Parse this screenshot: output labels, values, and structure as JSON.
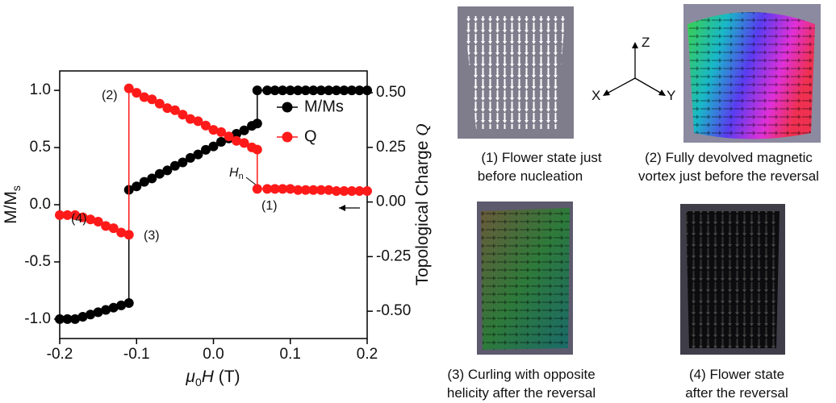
{
  "chart_data": {
    "type": "line",
    "xlabel": [
      "μ",
      "0",
      "H",
      " (T)"
    ],
    "ylabel": [
      "M/M",
      "s"
    ],
    "y2label": [
      "Topological Charge ",
      "Q"
    ],
    "xlim": [
      -0.2,
      0.2
    ],
    "xticks": [
      -0.2,
      -0.1,
      {
        "value": 0,
        "label": "0.0"
      },
      0.1,
      0.2
    ],
    "ylim": [
      -1.17,
      1.17
    ],
    "yticks": [
      {
        "value": -1,
        "label": "-1.0"
      },
      -0.5,
      {
        "value": 0,
        "label": "0.0"
      },
      0.5,
      {
        "value": 1,
        "label": "1.0"
      }
    ],
    "y2lim": [
      -0.625,
      0.6
    ],
    "y2ticks": [
      {
        "value": -0.5,
        "label": "-0.50"
      },
      {
        "value": -0.25,
        "label": "-0.25"
      },
      {
        "value": 0,
        "label": "0.00"
      },
      {
        "value": 0.25,
        "label": "0.25"
      },
      {
        "value": 0.5,
        "label": "0.50"
      }
    ],
    "legend": "upper right",
    "series": [
      {
        "name": "M/Ms",
        "color": "#000000",
        "axis": "y",
        "x": [
          -0.2,
          -0.19,
          -0.18,
          -0.17,
          -0.16,
          -0.15,
          -0.14,
          -0.13,
          -0.12,
          -0.11,
          -0.11,
          -0.1,
          -0.09,
          -0.08,
          -0.07,
          -0.06,
          -0.05,
          -0.04,
          -0.03,
          -0.02,
          -0.01,
          0,
          0.01,
          0.02,
          0.03,
          0.04,
          0.05,
          0.057,
          0.057,
          0.07,
          0.08,
          0.09,
          0.1,
          0.11,
          0.12,
          0.13,
          0.14,
          0.15,
          0.16,
          0.17,
          0.18,
          0.19,
          0.2
        ],
        "values": [
          -1.0,
          -1.0,
          -1.0,
          -0.98,
          -0.96,
          -0.94,
          -0.92,
          -0.9,
          -0.88,
          -0.86,
          0.13,
          0.16,
          0.2,
          0.23,
          0.27,
          0.3,
          0.34,
          0.37,
          0.41,
          0.44,
          0.48,
          0.51,
          0.55,
          0.58,
          0.62,
          0.65,
          0.69,
          0.71,
          1.0,
          1.0,
          1.0,
          1.0,
          1.0,
          1.0,
          1.0,
          1.0,
          1.0,
          1.0,
          1.0,
          1.0,
          1.0,
          1.0,
          1.0
        ]
      },
      {
        "name": "Q",
        "color": "#ff1a1a",
        "axis": "y2",
        "x": [
          -0.2,
          -0.19,
          -0.18,
          -0.17,
          -0.16,
          -0.15,
          -0.14,
          -0.13,
          -0.12,
          -0.11,
          -0.11,
          -0.1,
          -0.09,
          -0.08,
          -0.07,
          -0.06,
          -0.05,
          -0.04,
          -0.03,
          -0.02,
          -0.01,
          0,
          0.01,
          0.02,
          0.03,
          0.04,
          0.05,
          0.057,
          0.057,
          0.07,
          0.08,
          0.09,
          0.1,
          0.11,
          0.12,
          0.13,
          0.14,
          0.15,
          0.16,
          0.17,
          0.18,
          0.19,
          0.2
        ],
        "values": [
          -0.06,
          -0.06,
          -0.06,
          -0.07,
          -0.08,
          -0.09,
          -0.11,
          -0.12,
          -0.14,
          -0.15,
          0.52,
          0.5,
          0.48,
          0.47,
          0.45,
          0.43,
          0.42,
          0.4,
          0.38,
          0.37,
          0.35,
          0.33,
          0.32,
          0.3,
          0.28,
          0.27,
          0.25,
          0.24,
          0.06,
          0.06,
          0.06,
          0.06,
          0.06,
          0.055,
          0.055,
          0.055,
          0.055,
          0.055,
          0.05,
          0.05,
          0.05,
          0.05,
          0.05
        ]
      }
    ],
    "annotations": [
      "(1)",
      "(2)",
      "(3)",
      "(4)"
    ],
    "hn_label": [
      "H",
      "n"
    ]
  },
  "axes_icon": {
    "z": "Z",
    "x": "X",
    "y": "Y"
  },
  "panels": [
    {
      "caption": [
        "(1) Flower state just",
        "before nucleation"
      ]
    },
    {
      "caption": [
        "(2) Fully devolved magnetic",
        "vortex just before the reversal"
      ]
    },
    {
      "caption": [
        "(3) Curling with opposite",
        "helicity after the reversal"
      ]
    },
    {
      "caption": [
        "(4) Flower state",
        "after the reversal"
      ]
    }
  ]
}
